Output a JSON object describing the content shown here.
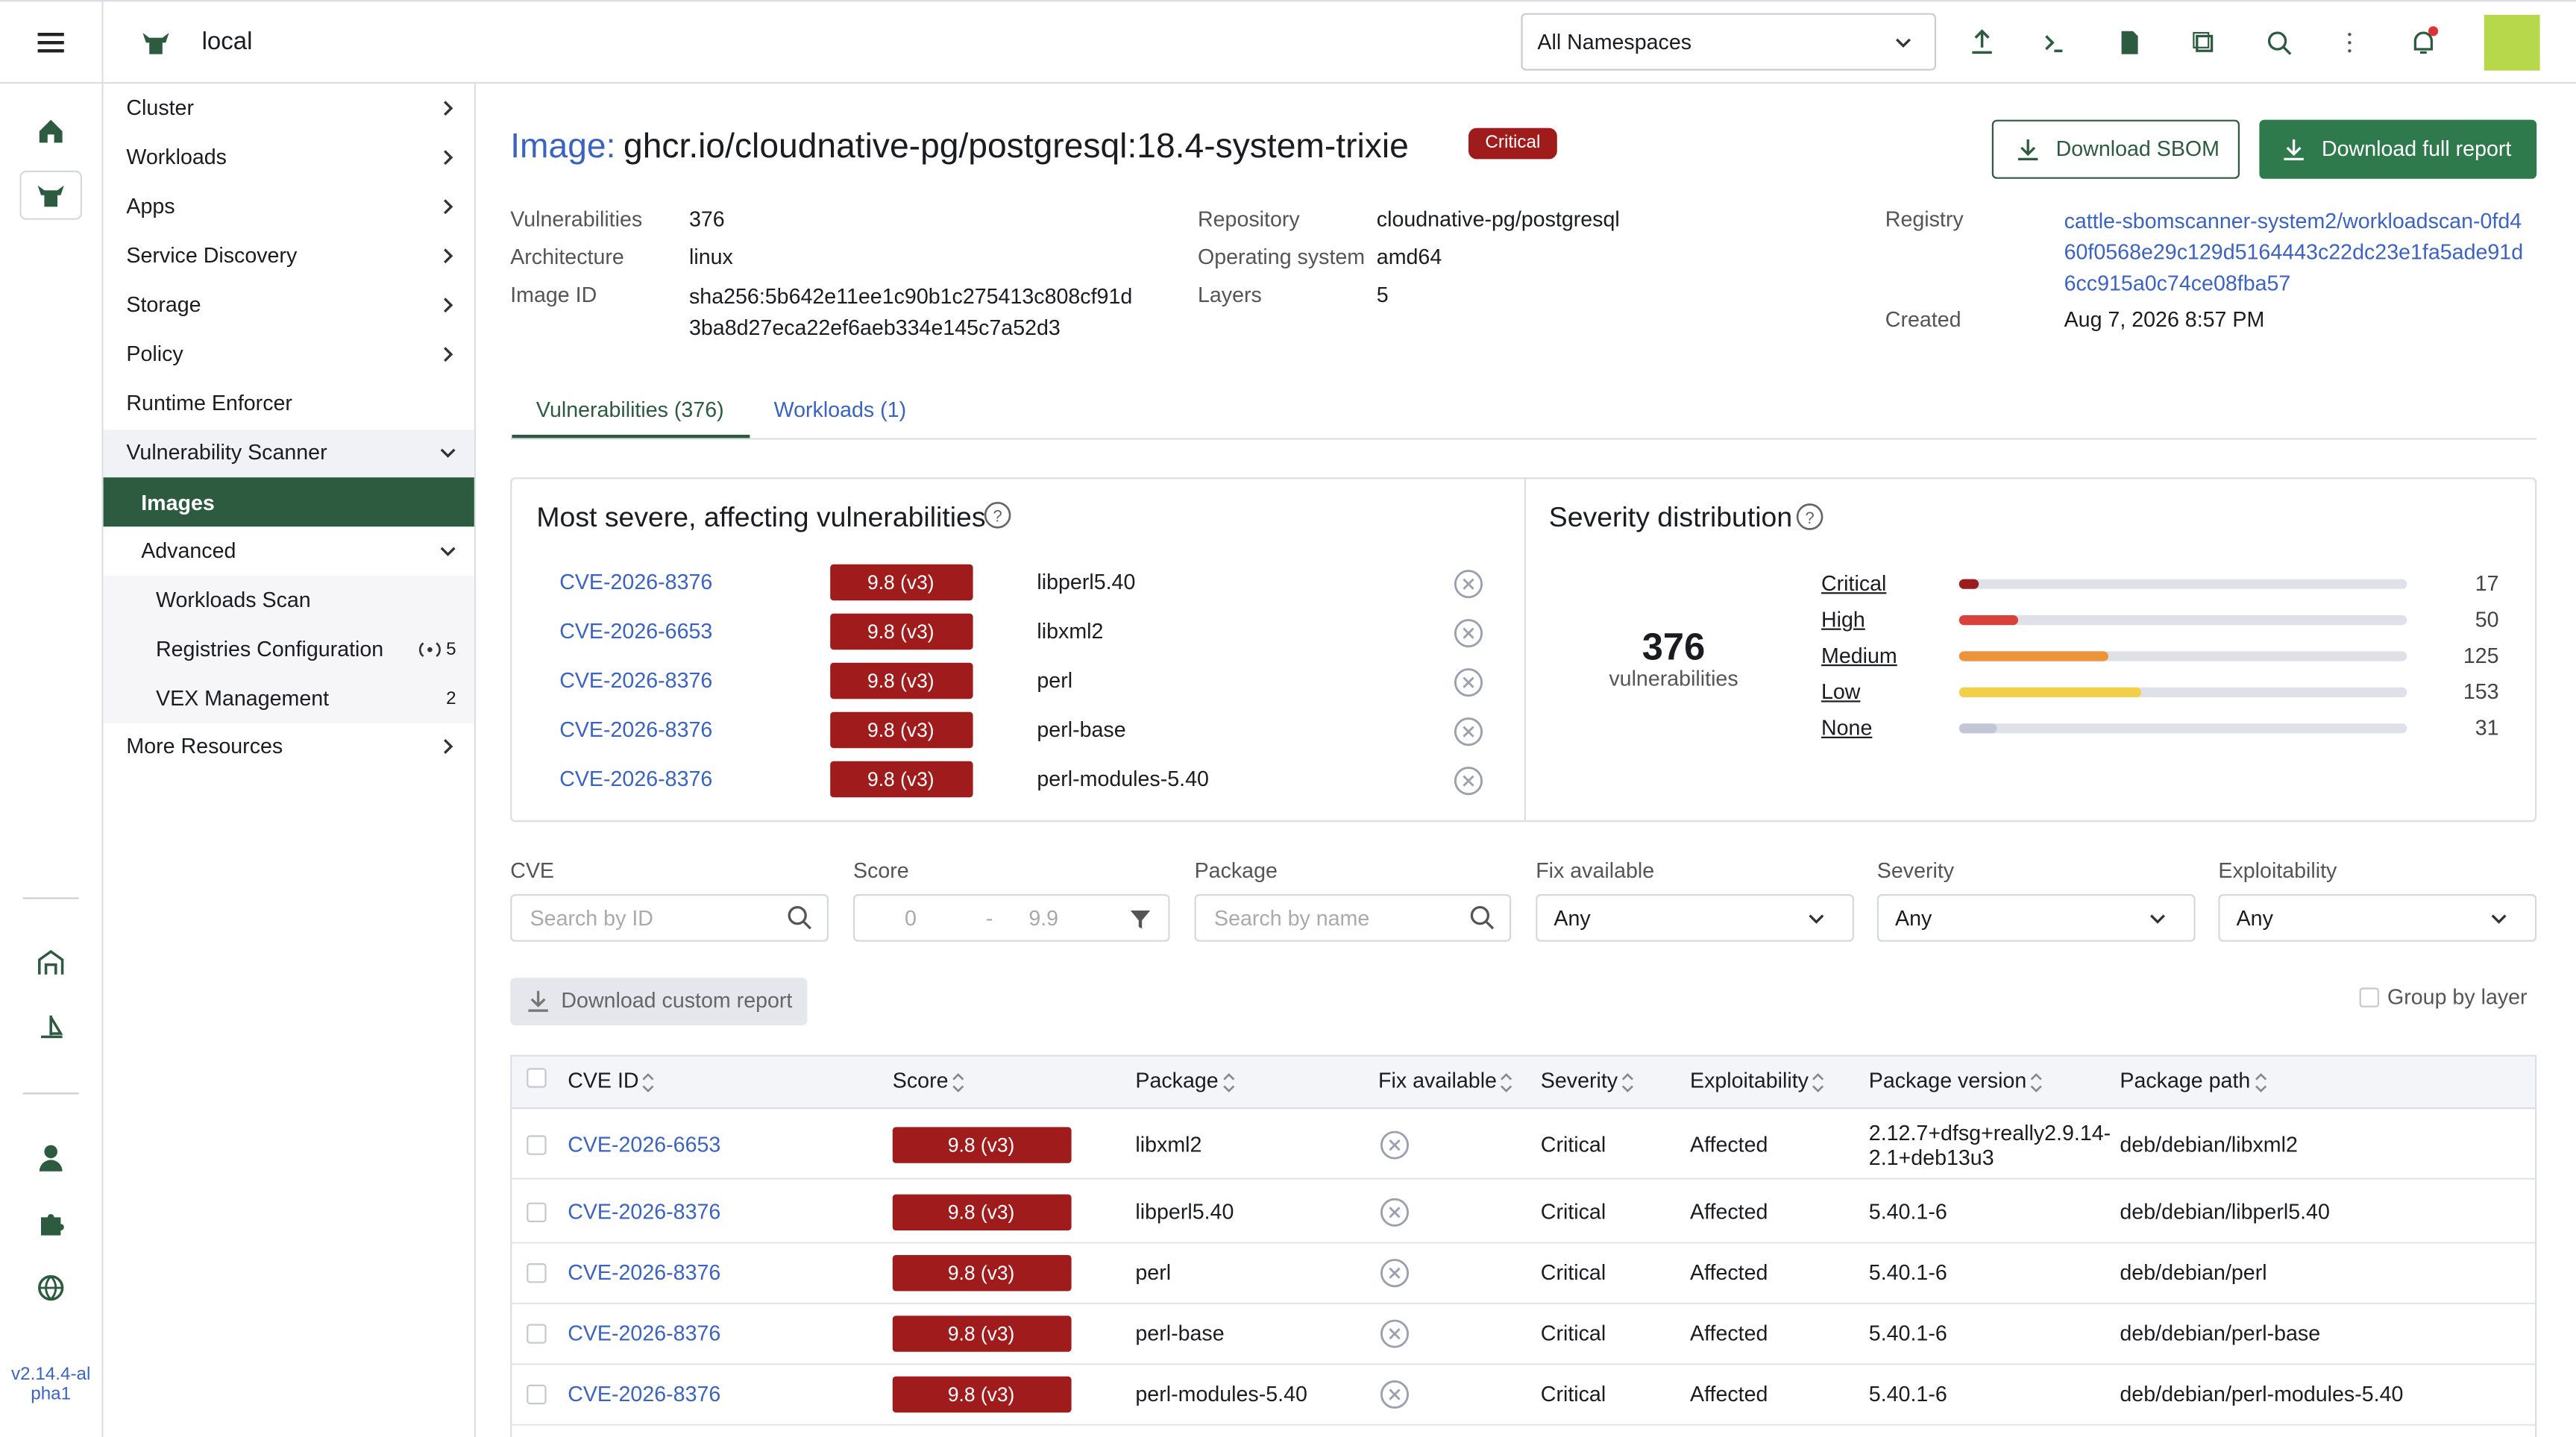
{
  "header": {
    "cluster": "local",
    "namespace": "All Namespaces"
  },
  "rail": {
    "version": "v2.14.4-alpha1"
  },
  "nav": {
    "items": [
      "Cluster",
      "Workloads",
      "Apps",
      "Service Discovery",
      "Storage",
      "Policy",
      "Runtime Enforcer",
      "Vulnerability Scanner",
      "Images",
      "Advanced",
      "Workloads Scan",
      "Registries Configuration",
      "VEX Management",
      "More Resources"
    ],
    "registries_count": 5,
    "vex_count": 2
  },
  "page": {
    "title_prefix": "Image:",
    "title": "ghcr.io/cloudnative-pg/postgresql:18.4-system-trixie",
    "badge": "Critical",
    "download_sbom": "Download SBOM",
    "download_report": "Download full report",
    "details": [
      {
        "label": "Vulnerabilities",
        "value": "376"
      },
      {
        "label": "Architecture",
        "value": "linux"
      },
      {
        "label": "Image ID",
        "value": "sha256:5b642e11ee1c90b1c275413c808cf91d3ba8d27eca22ef6aeb334e145c7a52d3"
      },
      {
        "label": "Repository",
        "value": "cloudnative-pg/postgresql"
      },
      {
        "label": "Operating system",
        "value": "amd64"
      },
      {
        "label": "Layers",
        "value": "5"
      },
      {
        "label": "Registry",
        "value": "cattle-sbomscanner-system2/workloadscan-0fd460f0568e29c129d5164443c22dc23e1fa5ade91d6cc915a0c74ce08fba57"
      },
      {
        "label": "Created",
        "value": "Aug 7, 2026 8:57 PM"
      }
    ],
    "tabs": [
      "Vulnerabilities (376)",
      "Workloads (1)"
    ]
  },
  "most_severe": {
    "title": "Most severe, affecting vulnerabilities",
    "rows": [
      {
        "cve": "CVE-2026-8376",
        "score": "9.8 (v3)",
        "package": "libperl5.40"
      },
      {
        "cve": "CVE-2026-6653",
        "score": "9.8 (v3)",
        "package": "libxml2"
      },
      {
        "cve": "CVE-2026-8376",
        "score": "9.8 (v3)",
        "package": "perl"
      },
      {
        "cve": "CVE-2026-8376",
        "score": "9.8 (v3)",
        "package": "perl-base"
      },
      {
        "cve": "CVE-2026-8376",
        "score": "9.8 (v3)",
        "package": "perl-modules-5.40"
      }
    ]
  },
  "severity": {
    "title": "Severity distribution",
    "total": 376,
    "total_label": "vulnerabilities",
    "levels": [
      {
        "name": "Critical",
        "count": 17,
        "color": "#9b1c1c"
      },
      {
        "name": "High",
        "count": 50,
        "color": "#d8423a"
      },
      {
        "name": "Medium",
        "count": 125,
        "color": "#ef933a"
      },
      {
        "name": "Low",
        "count": 153,
        "color": "#f4cf48"
      },
      {
        "name": "None",
        "count": 31,
        "color": "#c2c6d6"
      }
    ]
  },
  "filters": [
    {
      "label": "CVE",
      "placeholder": "Search by ID"
    },
    {
      "label": "Score",
      "min": "0",
      "sep": "-",
      "max": "9.9"
    },
    {
      "label": "Package",
      "placeholder": "Search by name"
    },
    {
      "label": "Fix available",
      "value": "Any"
    },
    {
      "label": "Severity",
      "value": "Any"
    },
    {
      "label": "Exploitability",
      "value": "Any"
    }
  ],
  "custom_report": "Download custom report",
  "group_by_layer": "Group by layer",
  "table": {
    "columns": [
      "CVE ID",
      "Score",
      "Package",
      "Fix available",
      "Severity",
      "Exploitability",
      "Package version",
      "Package path"
    ],
    "rows": [
      [
        "CVE-2026-6653",
        "9.8 (v3)",
        "libxml2",
        "Critical",
        "Affected",
        "2.12.7+dfsg+really2.9.14-2.1+deb13u3",
        "deb/debian/libxml2"
      ],
      [
        "CVE-2026-8376",
        "9.8 (v3)",
        "libperl5.40",
        "Critical",
        "Affected",
        "5.40.1-6",
        "deb/debian/libperl5.40"
      ],
      [
        "CVE-2026-8376",
        "9.8 (v3)",
        "perl",
        "Critical",
        "Affected",
        "5.40.1-6",
        "deb/debian/perl"
      ],
      [
        "CVE-2026-8376",
        "9.8 (v3)",
        "perl-base",
        "Critical",
        "Affected",
        "5.40.1-6",
        "deb/debian/perl-base"
      ],
      [
        "CVE-2026-8376",
        "9.8 (v3)",
        "perl-modules-5.40",
        "Critical",
        "Affected",
        "5.40.1-6",
        "deb/debian/perl-modules-5.40"
      ]
    ]
  }
}
